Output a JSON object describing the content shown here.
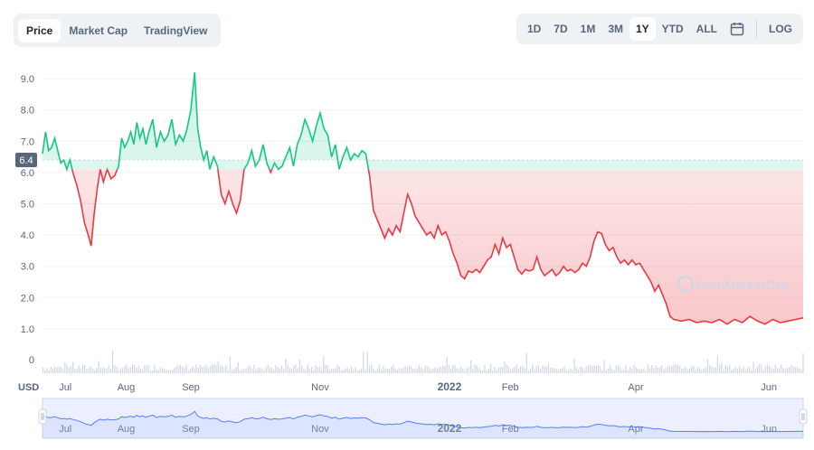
{
  "tabs": [
    {
      "label": "Price",
      "active": true
    },
    {
      "label": "Market Cap",
      "active": false
    },
    {
      "label": "TradingView",
      "active": false
    }
  ],
  "ranges": [
    {
      "label": "1D",
      "active": false
    },
    {
      "label": "7D",
      "active": false
    },
    {
      "label": "1M",
      "active": false
    },
    {
      "label": "3M",
      "active": false
    },
    {
      "label": "1Y",
      "active": true
    },
    {
      "label": "YTD",
      "active": false
    },
    {
      "label": "ALL",
      "active": false
    }
  ],
  "calendar_icon": "calendar-icon",
  "log_label": "LOG",
  "watermark": "CoinMarketCap",
  "colors": {
    "up": "#16c784",
    "down": "#ea3943",
    "navigator": "#3861fb",
    "volume": "#cfd6e4"
  },
  "chart_data": {
    "type": "line",
    "current_price_label": "6.4",
    "reference_value": 6.4,
    "volume_axis_label": "0",
    "currency_label": "USD",
    "yticks": [
      "1.0",
      "2.0",
      "3.0",
      "4.0",
      "5.0",
      "6.0",
      "7.0",
      "8.0",
      "9.0"
    ],
    "ylim": [
      0,
      9.6
    ],
    "x_labels": [
      {
        "label": "Jul",
        "t": 0.03,
        "bold": false
      },
      {
        "label": "Aug",
        "t": 0.11,
        "bold": false
      },
      {
        "label": "Sep",
        "t": 0.195,
        "bold": false
      },
      {
        "label": "Nov",
        "t": 0.365,
        "bold": false
      },
      {
        "label": "2022",
        "t": 0.535,
        "bold": true
      },
      {
        "label": "Feb",
        "t": 0.615,
        "bold": false
      },
      {
        "label": "Apr",
        "t": 0.78,
        "bold": false
      },
      {
        "label": "Jun",
        "t": 0.955,
        "bold": false
      }
    ],
    "series": [
      {
        "points": [
          [
            0,
            6.6
          ],
          [
            0.004,
            7.3
          ],
          [
            0.008,
            6.7
          ],
          [
            0.012,
            6.8
          ],
          [
            0.016,
            7.1
          ],
          [
            0.02,
            6.7
          ],
          [
            0.024,
            6.3
          ],
          [
            0.028,
            6.4
          ],
          [
            0.032,
            6.1
          ],
          [
            0.036,
            6.4
          ],
          [
            0.04,
            6.0
          ],
          [
            0.045,
            5.6
          ],
          [
            0.05,
            5.1
          ],
          [
            0.055,
            4.4
          ],
          [
            0.06,
            4.0
          ],
          [
            0.064,
            3.65
          ],
          [
            0.068,
            4.7
          ],
          [
            0.072,
            5.5
          ],
          [
            0.076,
            6.1
          ],
          [
            0.08,
            5.7
          ],
          [
            0.085,
            6.1
          ],
          [
            0.09,
            5.8
          ],
          [
            0.095,
            5.9
          ],
          [
            0.1,
            6.2
          ],
          [
            0.104,
            7.1
          ],
          [
            0.108,
            6.8
          ],
          [
            0.112,
            7.0
          ],
          [
            0.116,
            7.3
          ],
          [
            0.12,
            6.9
          ],
          [
            0.124,
            7.6
          ],
          [
            0.128,
            7.1
          ],
          [
            0.132,
            7.4
          ],
          [
            0.136,
            6.9
          ],
          [
            0.14,
            7.3
          ],
          [
            0.145,
            7.7
          ],
          [
            0.15,
            6.8
          ],
          [
            0.155,
            7.3
          ],
          [
            0.16,
            7.0
          ],
          [
            0.165,
            7.2
          ],
          [
            0.17,
            7.7
          ],
          [
            0.175,
            6.9
          ],
          [
            0.18,
            7.2
          ],
          [
            0.185,
            7.0
          ],
          [
            0.19,
            7.4
          ],
          [
            0.195,
            8.0
          ],
          [
            0.2,
            9.2
          ],
          [
            0.204,
            7.4
          ],
          [
            0.208,
            6.8
          ],
          [
            0.212,
            6.4
          ],
          [
            0.216,
            6.7
          ],
          [
            0.22,
            6.1
          ],
          [
            0.225,
            6.5
          ],
          [
            0.23,
            6.2
          ],
          [
            0.235,
            5.3
          ],
          [
            0.24,
            5.0
          ],
          [
            0.245,
            5.4
          ],
          [
            0.25,
            5.0
          ],
          [
            0.255,
            4.7
          ],
          [
            0.26,
            5.1
          ],
          [
            0.265,
            6.1
          ],
          [
            0.27,
            6.3
          ],
          [
            0.275,
            6.7
          ],
          [
            0.28,
            6.2
          ],
          [
            0.285,
            6.4
          ],
          [
            0.29,
            6.9
          ],
          [
            0.295,
            6.3
          ],
          [
            0.3,
            6.0
          ],
          [
            0.305,
            6.3
          ],
          [
            0.31,
            6.1
          ],
          [
            0.315,
            6.2
          ],
          [
            0.32,
            6.5
          ],
          [
            0.325,
            6.8
          ],
          [
            0.33,
            6.2
          ],
          [
            0.335,
            6.9
          ],
          [
            0.34,
            7.2
          ],
          [
            0.345,
            7.7
          ],
          [
            0.35,
            7.4
          ],
          [
            0.355,
            7.0
          ],
          [
            0.36,
            7.5
          ],
          [
            0.365,
            7.9
          ],
          [
            0.37,
            7.4
          ],
          [
            0.375,
            7.2
          ],
          [
            0.38,
            6.5
          ],
          [
            0.385,
            6.9
          ],
          [
            0.39,
            6.1
          ],
          [
            0.395,
            6.5
          ],
          [
            0.4,
            6.8
          ],
          [
            0.405,
            6.4
          ],
          [
            0.41,
            6.6
          ],
          [
            0.415,
            6.5
          ],
          [
            0.42,
            6.7
          ],
          [
            0.425,
            6.6
          ],
          [
            0.43,
            5.9
          ],
          [
            0.435,
            4.8
          ],
          [
            0.44,
            4.5
          ],
          [
            0.445,
            4.2
          ],
          [
            0.45,
            3.9
          ],
          [
            0.455,
            4.2
          ],
          [
            0.46,
            4.0
          ],
          [
            0.465,
            4.3
          ],
          [
            0.47,
            4.1
          ],
          [
            0.475,
            4.7
          ],
          [
            0.48,
            5.3
          ],
          [
            0.485,
            5.0
          ],
          [
            0.49,
            4.6
          ],
          [
            0.495,
            4.4
          ],
          [
            0.5,
            4.2
          ],
          [
            0.505,
            4.0
          ],
          [
            0.51,
            4.1
          ],
          [
            0.515,
            3.9
          ],
          [
            0.52,
            4.3
          ],
          [
            0.525,
            4.0
          ],
          [
            0.53,
            4.1
          ],
          [
            0.535,
            3.8
          ],
          [
            0.54,
            3.4
          ],
          [
            0.545,
            3.1
          ],
          [
            0.55,
            2.7
          ],
          [
            0.555,
            2.6
          ],
          [
            0.56,
            2.85
          ],
          [
            0.565,
            2.8
          ],
          [
            0.57,
            2.9
          ],
          [
            0.575,
            2.8
          ],
          [
            0.58,
            3.0
          ],
          [
            0.585,
            3.2
          ],
          [
            0.59,
            3.3
          ],
          [
            0.595,
            3.7
          ],
          [
            0.6,
            3.4
          ],
          [
            0.605,
            3.9
          ],
          [
            0.61,
            3.6
          ],
          [
            0.615,
            3.7
          ],
          [
            0.62,
            3.3
          ],
          [
            0.625,
            2.9
          ],
          [
            0.63,
            2.75
          ],
          [
            0.635,
            2.9
          ],
          [
            0.64,
            2.85
          ],
          [
            0.645,
            2.9
          ],
          [
            0.65,
            3.3
          ],
          [
            0.655,
            2.9
          ],
          [
            0.66,
            2.7
          ],
          [
            0.665,
            2.8
          ],
          [
            0.67,
            2.9
          ],
          [
            0.675,
            2.7
          ],
          [
            0.68,
            2.8
          ],
          [
            0.685,
            3.0
          ],
          [
            0.69,
            2.85
          ],
          [
            0.695,
            2.9
          ],
          [
            0.7,
            2.8
          ],
          [
            0.705,
            2.9
          ],
          [
            0.71,
            3.1
          ],
          [
            0.715,
            3.0
          ],
          [
            0.72,
            3.3
          ],
          [
            0.725,
            3.8
          ],
          [
            0.73,
            4.1
          ],
          [
            0.735,
            4.05
          ],
          [
            0.74,
            3.7
          ],
          [
            0.745,
            3.5
          ],
          [
            0.75,
            3.6
          ],
          [
            0.755,
            3.3
          ],
          [
            0.76,
            3.1
          ],
          [
            0.765,
            3.2
          ],
          [
            0.77,
            3.05
          ],
          [
            0.775,
            3.2
          ],
          [
            0.78,
            3.05
          ],
          [
            0.785,
            3.1
          ],
          [
            0.79,
            2.9
          ],
          [
            0.795,
            2.7
          ],
          [
            0.8,
            2.5
          ],
          [
            0.805,
            2.2
          ],
          [
            0.81,
            2.4
          ],
          [
            0.815,
            2.1
          ],
          [
            0.82,
            1.8
          ],
          [
            0.825,
            1.4
          ],
          [
            0.83,
            1.3
          ],
          [
            0.84,
            1.25
          ],
          [
            0.85,
            1.3
          ],
          [
            0.86,
            1.2
          ],
          [
            0.87,
            1.25
          ],
          [
            0.88,
            1.2
          ],
          [
            0.89,
            1.3
          ],
          [
            0.9,
            1.15
          ],
          [
            0.91,
            1.3
          ],
          [
            0.92,
            1.2
          ],
          [
            0.93,
            1.4
          ],
          [
            0.94,
            1.25
          ],
          [
            0.95,
            1.15
          ],
          [
            0.96,
            1.3
          ],
          [
            0.97,
            1.2
          ],
          [
            0.98,
            1.25
          ],
          [
            0.99,
            1.3
          ],
          [
            1.0,
            1.35
          ]
        ]
      }
    ]
  }
}
